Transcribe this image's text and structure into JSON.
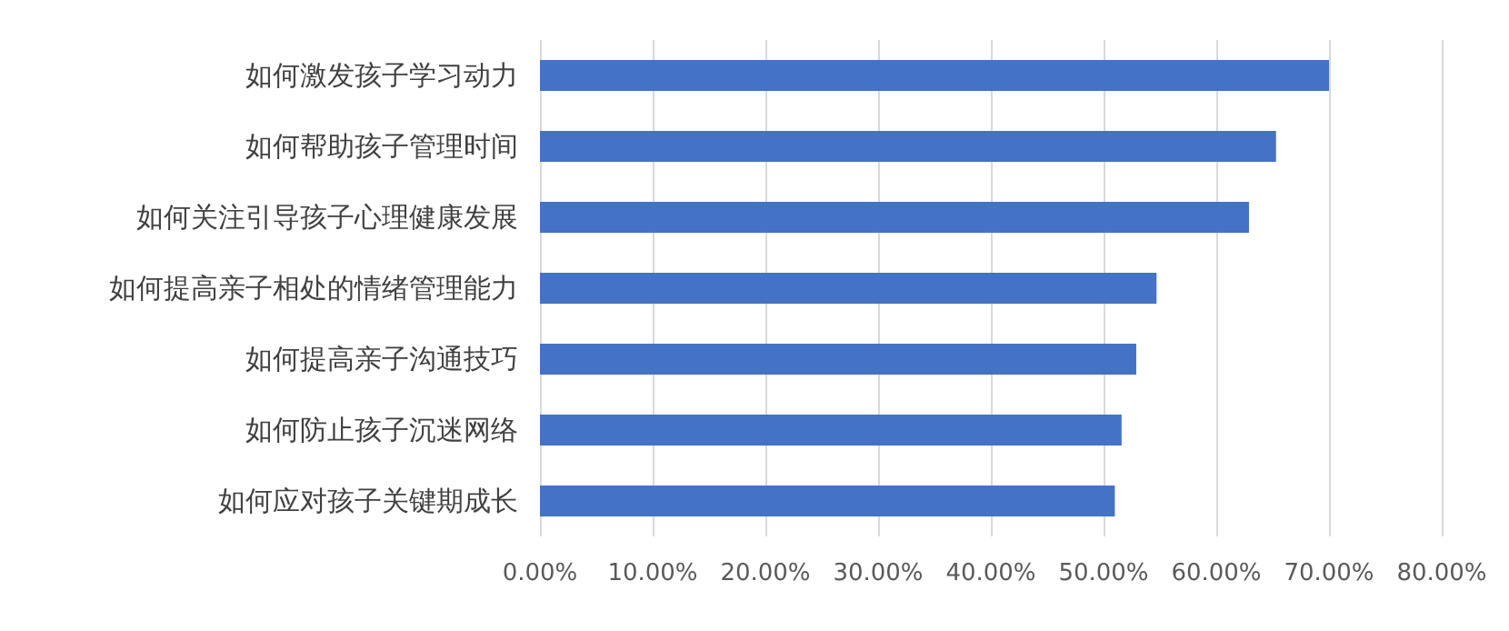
{
  "chart_data": {
    "type": "bar",
    "orientation": "horizontal",
    "categories": [
      "如何激发孩子学习动力",
      "如何帮助孩子管理时间",
      "如何关注引导孩子心理健康发展",
      "如何提高亲子相处的情绪管理能力",
      "如何提高亲子沟通技巧",
      "如何防止孩子沉迷网络",
      "如何应对孩子关键期成长"
    ],
    "values": [
      70.0,
      65.3,
      62.9,
      54.7,
      52.9,
      51.6,
      51.0
    ],
    "color": "#4472c4",
    "xlim": [
      0,
      80
    ],
    "xticks": [
      {
        "value": 0,
        "label": "0.00%"
      },
      {
        "value": 10,
        "label": "10.00%"
      },
      {
        "value": 20,
        "label": "20.00%"
      },
      {
        "value": 30,
        "label": "30.00%"
      },
      {
        "value": 40,
        "label": "40.00%"
      },
      {
        "value": 50,
        "label": "50.00%"
      },
      {
        "value": 60,
        "label": "60.00%"
      },
      {
        "value": 70,
        "label": "70.00%"
      },
      {
        "value": 80,
        "label": "80.00%"
      }
    ],
    "grid": "x"
  }
}
